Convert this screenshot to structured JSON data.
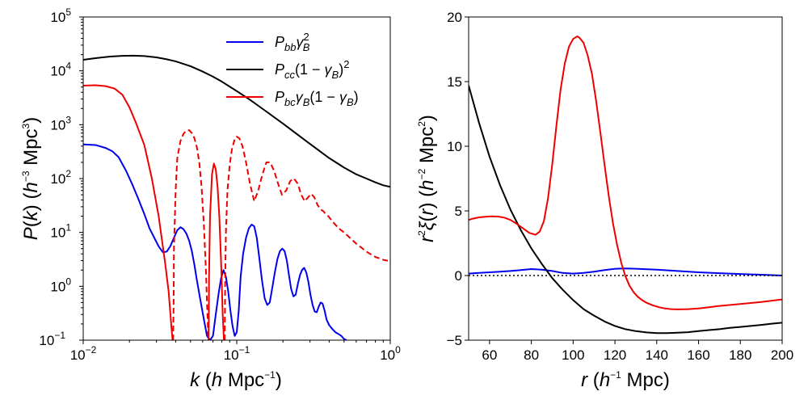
{
  "chart_data": [
    {
      "type": "line",
      "scale": "log-log",
      "xlabel": "k (h Mpc⁻¹)",
      "ylabel": "P(k) (h⁻³ Mpc³)",
      "xlim": [
        0.01,
        1
      ],
      "ylim": [
        0.1,
        100000
      ],
      "x_ticks": [
        "10^-2",
        "10^-1",
        "10^0"
      ],
      "y_ticks": [
        "10^-1",
        "10^0",
        "10^1",
        "10^2",
        "10^3",
        "10^4",
        "10^5"
      ],
      "legend": {
        "location": "upper-right",
        "entries": [
          "P_bb γ_B^2",
          "P_cc (1 − γ_B)^2",
          "P_bc γ_B (1 − γ_B)"
        ]
      },
      "series": [
        {
          "name": "P_bb γ_B^2",
          "color": "#0000ee",
          "x": [
            0.01,
            0.012,
            0.014,
            0.0155,
            0.017,
            0.019,
            0.021,
            0.023,
            0.025,
            0.027,
            0.029,
            0.031,
            0.033,
            0.035,
            0.037,
            0.039,
            0.041,
            0.043,
            0.045,
            0.047,
            0.049,
            0.051,
            0.053,
            0.055,
            0.058,
            0.061,
            0.064,
            0.067,
            0.07,
            0.073,
            0.076,
            0.079,
            0.082,
            0.085,
            0.088,
            0.091,
            0.094,
            0.097,
            0.1,
            0.103,
            0.106,
            0.11,
            0.115,
            0.12,
            0.125,
            0.13,
            0.135,
            0.14,
            0.146,
            0.152,
            0.158,
            0.164,
            0.17,
            0.177,
            0.184,
            0.191,
            0.198,
            0.205,
            0.212,
            0.219,
            0.226,
            0.234,
            0.242,
            0.25,
            0.258,
            0.266,
            0.275,
            0.284,
            0.293,
            0.302,
            0.312,
            0.322,
            0.332,
            0.342,
            0.352,
            0.362,
            0.373,
            0.385,
            0.4,
            0.42,
            0.44,
            0.46,
            0.48,
            0.5,
            0.52
          ],
          "y": [
            430,
            420,
            370,
            320,
            250,
            140,
            75,
            40,
            22,
            12,
            8,
            5.5,
            4.3,
            4.4,
            5.6,
            8,
            11,
            12.5,
            11.5,
            9.5,
            7,
            4.5,
            2.5,
            1.3,
            0.55,
            0.25,
            0.12,
            0.1,
            0.12,
            0.3,
            0.7,
            1.4,
            2,
            1.5,
            0.8,
            0.35,
            0.18,
            0.12,
            0.14,
            0.35,
            1.5,
            4,
            8,
            12,
            14,
            13,
            8,
            3.5,
            1.3,
            0.6,
            0.45,
            0.5,
            0.9,
            1.8,
            3.2,
            4.5,
            5,
            4.5,
            3,
            1.6,
            0.9,
            0.65,
            0.7,
            1.1,
            1.6,
            2,
            2.2,
            1.8,
            1.2,
            0.7,
            0.45,
            0.34,
            0.33,
            0.42,
            0.5,
            0.48,
            0.36,
            0.24,
            0.19,
            0.16,
            0.14,
            0.13,
            0.12,
            0.105,
            0.1
          ]
        },
        {
          "name": "P_cc (1 − γ_B)^2",
          "color": "#000000",
          "x": [
            0.01,
            0.012,
            0.015,
            0.018,
            0.021,
            0.025,
            0.03,
            0.035,
            0.04,
            0.05,
            0.06,
            0.07,
            0.08,
            0.1,
            0.12,
            0.15,
            0.2,
            0.25,
            0.3,
            0.4,
            0.5,
            0.6,
            0.7,
            0.8,
            0.9,
            1.0
          ],
          "y": [
            16000,
            17200,
            18400,
            19000,
            19100,
            18800,
            17800,
            16400,
            15000,
            12200,
            9700,
            7800,
            6300,
            4200,
            3000,
            1900,
            1050,
            650,
            440,
            240,
            160,
            120,
            100,
            85,
            75,
            70
          ]
        },
        {
          "name": "P_bc γ_B (1 − γ_B) (positive part)",
          "color": "#ee0000",
          "linestyle": "solid",
          "x": [
            0.01,
            0.012,
            0.014,
            0.016,
            0.018,
            0.02,
            0.022,
            0.025,
            0.028,
            0.031,
            0.034,
            0.036,
            0.037,
            0.0375,
            0.038,
            0.0382,
            null,
            0.0655,
            0.0658,
            0.066,
            0.067,
            0.069,
            0.071,
            0.073,
            0.075,
            0.077,
            0.079,
            0.08,
            0.081,
            0.082,
            0.0825
          ],
          "y": [
            5300,
            5400,
            5200,
            4700,
            3600,
            2100,
            1100,
            420,
            100,
            20,
            3,
            0.8,
            0.3,
            0.18,
            0.12,
            0.1,
            null,
            0.1,
            0.25,
            1.5,
            20,
            120,
            190,
            150,
            70,
            20,
            3,
            1,
            0.3,
            0.15,
            0.1
          ]
        },
        {
          "name": "P_bc γ_B (1 − γ_B) (negative part)",
          "color": "#ee0000",
          "linestyle": "dashed",
          "x": [
            0.0385,
            0.0388,
            0.039,
            0.04,
            0.041,
            0.043,
            0.045,
            0.047,
            0.049,
            0.051,
            0.053,
            0.055,
            0.057,
            0.059,
            0.061,
            0.063,
            0.064,
            0.0648,
            0.0652,
            null,
            0.0835,
            0.084,
            0.085,
            0.087,
            0.09,
            0.093,
            0.097,
            0.1,
            0.104,
            0.109,
            0.115,
            0.122,
            0.13,
            0.138,
            0.147,
            0.156,
            0.165,
            0.175,
            0.186,
            0.197,
            0.21,
            0.223,
            0.236,
            0.25,
            0.263,
            0.277,
            0.29,
            0.305,
            0.32,
            0.335,
            0.35,
            0.365,
            0.38,
            0.395,
            0.42,
            0.46,
            0.5,
            0.55,
            0.6,
            0.65,
            0.7,
            0.75,
            0.8,
            0.85,
            0.9,
            0.95,
            1.0
          ],
          "y": [
            0.1,
            0.5,
            5,
            60,
            240,
            500,
            680,
            780,
            790,
            700,
            560,
            380,
            200,
            70,
            15,
            2,
            0.5,
            0.2,
            0.1,
            null,
            0.1,
            1,
            10,
            60,
            180,
            350,
            540,
            600,
            560,
            400,
            200,
            80,
            38,
            60,
            120,
            200,
            200,
            140,
            80,
            50,
            60,
            90,
            100,
            80,
            50,
            38,
            44,
            52,
            45,
            33,
            27,
            25,
            22,
            20,
            16,
            12,
            10,
            7.8,
            6.2,
            5.2,
            4.4,
            3.9,
            3.5,
            3.3,
            3.1,
            3.0,
            3.0
          ]
        }
      ]
    },
    {
      "type": "line",
      "xlabel": "r (h⁻¹ Mpc)",
      "ylabel": "r²ξ(r) (h⁻² Mpc²)",
      "xlim": [
        50,
        200
      ],
      "ylim": [
        -5,
        20
      ],
      "x_ticks": [
        60,
        80,
        100,
        120,
        140,
        160,
        180,
        200
      ],
      "y_ticks": [
        -5,
        0,
        5,
        10,
        15,
        20
      ],
      "series": [
        {
          "name": "P_bb γ_B^2",
          "color": "#0000ee",
          "x": [
            50,
            55,
            60,
            65,
            70,
            75,
            80,
            85,
            90,
            95,
            100,
            105,
            110,
            115,
            120,
            125,
            130,
            140,
            150,
            160,
            170,
            180,
            190,
            200
          ],
          "y": [
            0.15,
            0.2,
            0.25,
            0.3,
            0.35,
            0.42,
            0.5,
            0.45,
            0.35,
            0.2,
            0.15,
            0.2,
            0.3,
            0.42,
            0.52,
            0.55,
            0.52,
            0.45,
            0.35,
            0.25,
            0.18,
            0.12,
            0.06,
            0.0
          ]
        },
        {
          "name": "P_cc (1 − γ_B)^2",
          "color": "#000000",
          "x": [
            50,
            55,
            60,
            65,
            70,
            75,
            80,
            85,
            90,
            95,
            100,
            105,
            110,
            115,
            120,
            125,
            130,
            135,
            140,
            145,
            150,
            155,
            160,
            165,
            170,
            175,
            180,
            185,
            190,
            195,
            200
          ],
          "y": [
            14.7,
            11.8,
            9.2,
            7.0,
            5.1,
            3.5,
            2.1,
            0.9,
            -0.2,
            -1.1,
            -1.9,
            -2.6,
            -3.1,
            -3.55,
            -3.9,
            -4.15,
            -4.3,
            -4.4,
            -4.45,
            -4.45,
            -4.42,
            -4.38,
            -4.3,
            -4.22,
            -4.15,
            -4.05,
            -3.98,
            -3.9,
            -3.82,
            -3.73,
            -3.65
          ]
        },
        {
          "name": "P_bc γ_B (1 − γ_B)",
          "color": "#ee0000",
          "x": [
            50,
            52,
            55,
            58,
            61,
            64,
            67,
            70,
            73,
            76,
            79,
            82,
            84,
            86,
            88,
            90,
            92,
            94,
            96,
            98,
            100,
            102,
            103,
            105,
            107,
            109,
            111,
            113,
            115,
            117,
            119,
            121,
            123,
            125,
            127,
            129,
            131,
            133,
            135,
            138,
            141,
            144,
            147,
            150,
            155,
            160,
            165,
            170,
            180,
            190,
            200
          ],
          "y": [
            4.3,
            4.4,
            4.5,
            4.55,
            4.58,
            4.56,
            4.48,
            4.3,
            4.0,
            3.65,
            3.3,
            3.15,
            3.4,
            4.2,
            6.0,
            8.6,
            11.6,
            14.4,
            16.4,
            17.7,
            18.3,
            18.5,
            18.4,
            18.0,
            17.0,
            15.6,
            13.5,
            11.1,
            8.6,
            6.2,
            4.1,
            2.4,
            1.0,
            -0.05,
            -0.8,
            -1.3,
            -1.65,
            -1.9,
            -2.1,
            -2.3,
            -2.45,
            -2.55,
            -2.6,
            -2.62,
            -2.6,
            -2.55,
            -2.45,
            -2.35,
            -2.2,
            -2.05,
            -1.85
          ]
        },
        {
          "name": "zero reference",
          "color": "#000000",
          "linestyle": "dotted",
          "x": [
            50,
            200
          ],
          "y": [
            0,
            0
          ]
        }
      ]
    }
  ]
}
